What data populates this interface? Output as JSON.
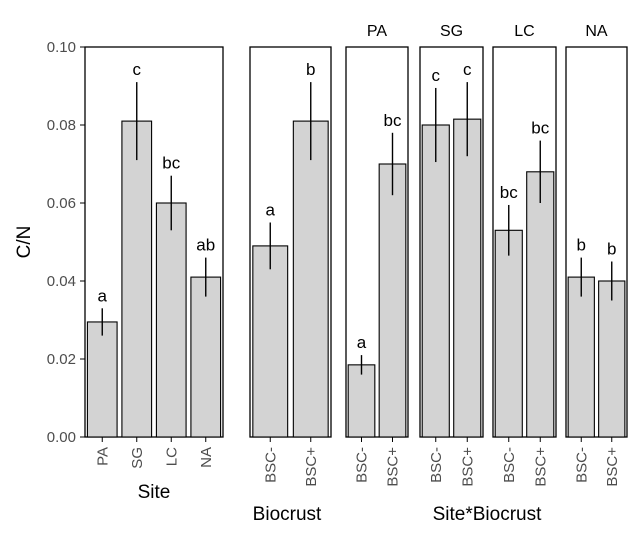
{
  "chart_data": [
    {
      "type": "bar",
      "xlabel": "Site",
      "ylabel": "C/N",
      "ylim": [
        0,
        0.1
      ],
      "yticks": [
        "0.00",
        "0.02",
        "0.04",
        "0.06",
        "0.08",
        "0.10"
      ],
      "categories": [
        "PA",
        "SG",
        "LC",
        "NA"
      ],
      "values": [
        0.0295,
        0.081,
        0.06,
        0.041
      ],
      "errors": [
        0.0035,
        0.01,
        0.007,
        0.005
      ],
      "letters": [
        "a",
        "c",
        "bc",
        "ab"
      ]
    },
    {
      "type": "bar",
      "xlabel": "Biocrust",
      "ylim": [
        0,
        0.1
      ],
      "categories": [
        "BSC-",
        "BSC+"
      ],
      "values": [
        0.049,
        0.081
      ],
      "errors": [
        0.006,
        0.01
      ],
      "letters": [
        "a",
        "b"
      ]
    },
    {
      "type": "bar",
      "xlabel": "Site*Biocrust",
      "ylim": [
        0,
        0.1
      ],
      "facets": [
        {
          "strip": "PA",
          "categories": [
            "BSC-",
            "BSC+"
          ],
          "values": [
            0.0185,
            0.07
          ],
          "errors": [
            0.0025,
            0.008
          ],
          "letters": [
            "a",
            "bc"
          ]
        },
        {
          "strip": "SG",
          "categories": [
            "BSC-",
            "BSC+"
          ],
          "values": [
            0.08,
            0.0815
          ],
          "errors": [
            0.0095,
            0.0095
          ],
          "letters": [
            "c",
            "c"
          ]
        },
        {
          "strip": "LC",
          "categories": [
            "BSC-",
            "BSC+"
          ],
          "values": [
            0.053,
            0.068
          ],
          "errors": [
            0.0065,
            0.008
          ],
          "letters": [
            "bc",
            "bc"
          ]
        },
        {
          "strip": "NA",
          "categories": [
            "BSC-",
            "BSC+"
          ],
          "values": [
            0.041,
            0.04
          ],
          "errors": [
            0.005,
            0.005
          ],
          "letters": [
            "b",
            "b"
          ]
        }
      ]
    }
  ]
}
